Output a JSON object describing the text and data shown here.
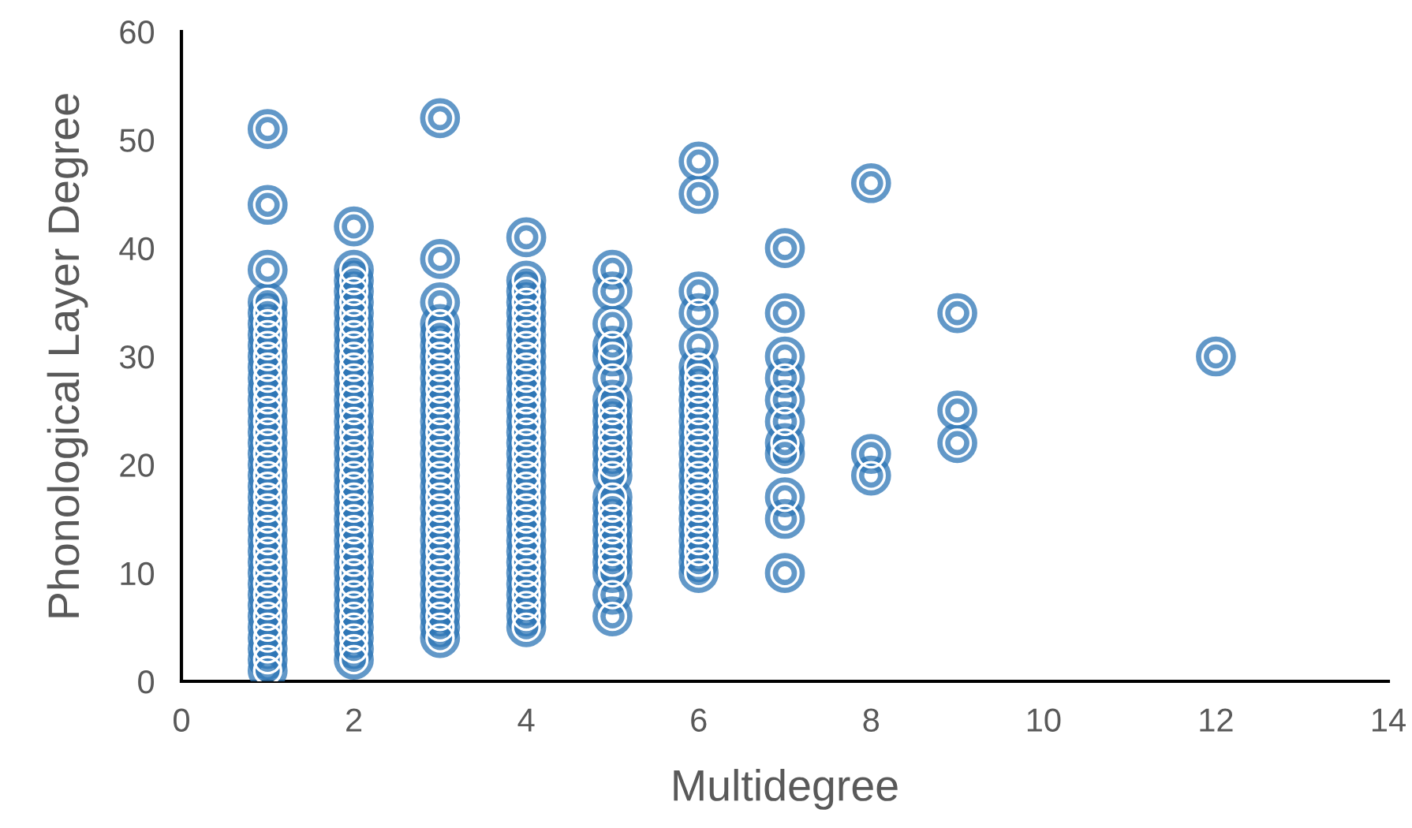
{
  "chart_data": {
    "type": "scatter",
    "xlabel": "Multidegree",
    "ylabel": "Phonological Layer Degree",
    "xlim": [
      0,
      14
    ],
    "xticks": [
      0,
      2,
      4,
      6,
      8,
      10,
      12,
      14
    ],
    "ylim": [
      0,
      60
    ],
    "yticks": [
      0,
      10,
      20,
      30,
      40,
      50,
      60
    ],
    "grid": false,
    "legend": false,
    "marker": "circle",
    "series": [
      {
        "color": "#2e75b6",
        "x": [
          1,
          1,
          1,
          1,
          1,
          1,
          1,
          1,
          1,
          1,
          1,
          1,
          1,
          1,
          1,
          1,
          1,
          1,
          1,
          1,
          1,
          1,
          1,
          1,
          1,
          1,
          1,
          1,
          1,
          1,
          1,
          1,
          1,
          1,
          1,
          1,
          1,
          1,
          2,
          2,
          2,
          2,
          2,
          2,
          2,
          2,
          2,
          2,
          2,
          2,
          2,
          2,
          2,
          2,
          2,
          2,
          2,
          2,
          2,
          2,
          2,
          2,
          2,
          2,
          2,
          2,
          2,
          2,
          2,
          2,
          2,
          2,
          2,
          2,
          2,
          2,
          3,
          3,
          3,
          3,
          3,
          3,
          3,
          3,
          3,
          3,
          3,
          3,
          3,
          3,
          3,
          3,
          3,
          3,
          3,
          3,
          3,
          3,
          3,
          3,
          3,
          3,
          3,
          3,
          3,
          3,
          3,
          3,
          3,
          4,
          4,
          4,
          4,
          4,
          4,
          4,
          4,
          4,
          4,
          4,
          4,
          4,
          4,
          4,
          4,
          4,
          4,
          4,
          4,
          4,
          4,
          4,
          4,
          4,
          4,
          4,
          4,
          4,
          4,
          4,
          4,
          4,
          4,
          5,
          5,
          5,
          5,
          5,
          5,
          5,
          5,
          5,
          5,
          5,
          5,
          5,
          5,
          5,
          5,
          5,
          5,
          5,
          5,
          5,
          5,
          5,
          5,
          6,
          6,
          6,
          6,
          6,
          6,
          6,
          6,
          6,
          6,
          6,
          6,
          6,
          6,
          6,
          6,
          6,
          6,
          6,
          6,
          6,
          6,
          6,
          6,
          6,
          7,
          7,
          7,
          7,
          7,
          7,
          7,
          7,
          7,
          7,
          7,
          8,
          8,
          8,
          9,
          9,
          9,
          12
        ],
        "values": [
          1,
          2,
          3,
          4,
          5,
          6,
          7,
          8,
          9,
          10,
          11,
          12,
          13,
          14,
          15,
          16,
          17,
          18,
          19,
          20,
          21,
          22,
          23,
          24,
          25,
          26,
          27,
          28,
          29,
          30,
          31,
          32,
          33,
          34,
          35,
          38,
          44,
          51,
          2,
          3,
          4,
          5,
          6,
          7,
          8,
          9,
          10,
          11,
          12,
          13,
          14,
          15,
          16,
          17,
          18,
          19,
          20,
          21,
          22,
          23,
          24,
          25,
          26,
          27,
          28,
          29,
          30,
          31,
          32,
          33,
          34,
          35,
          36,
          37,
          38,
          42,
          4,
          5,
          6,
          7,
          8,
          9,
          10,
          11,
          12,
          13,
          14,
          15,
          16,
          17,
          18,
          19,
          20,
          21,
          22,
          23,
          24,
          25,
          26,
          27,
          28,
          29,
          30,
          31,
          32,
          33,
          35,
          39,
          52,
          5,
          6,
          7,
          8,
          9,
          10,
          11,
          12,
          13,
          14,
          15,
          16,
          17,
          18,
          19,
          20,
          21,
          22,
          23,
          24,
          25,
          26,
          27,
          28,
          29,
          30,
          31,
          32,
          33,
          34,
          35,
          36,
          37,
          41,
          6,
          8,
          10,
          11,
          12,
          13,
          14,
          15,
          16,
          17,
          19,
          20,
          21,
          22,
          23,
          24,
          25,
          26,
          28,
          30,
          31,
          33,
          36,
          38,
          10,
          11,
          12,
          13,
          14,
          15,
          16,
          17,
          18,
          19,
          20,
          21,
          22,
          23,
          24,
          25,
          26,
          27,
          28,
          29,
          31,
          34,
          36,
          45,
          48,
          10,
          15,
          17,
          21,
          22,
          24,
          26,
          28,
          30,
          34,
          40,
          19,
          21,
          46,
          22,
          25,
          34,
          30
        ]
      }
    ]
  }
}
